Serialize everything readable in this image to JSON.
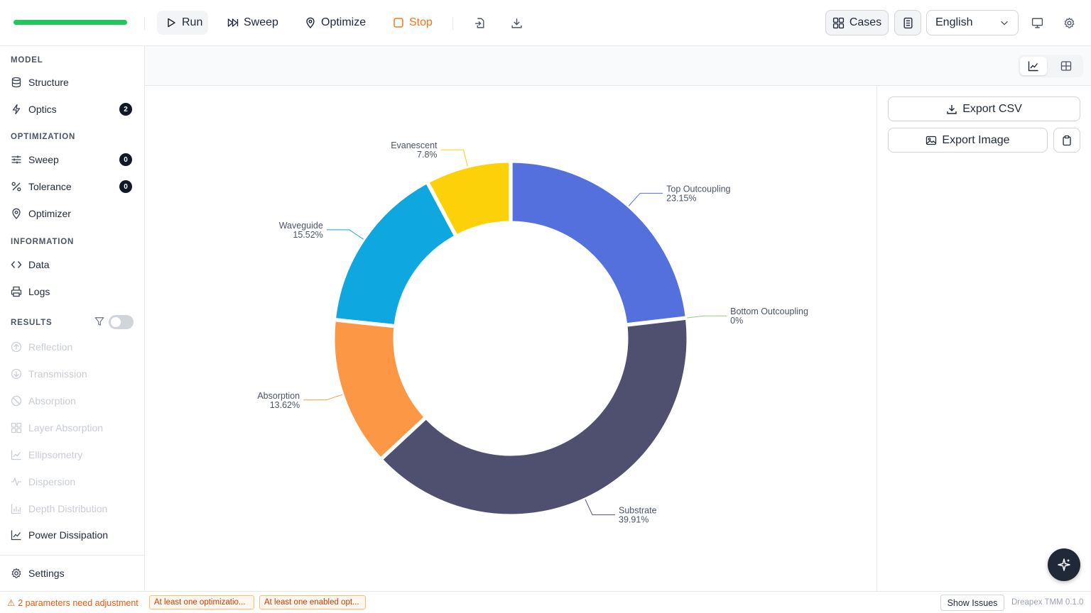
{
  "toolbar": {
    "run_label": "Run",
    "sweep_label": "Sweep",
    "optimize_label": "Optimize",
    "stop_label": "Stop",
    "cases_label": "Cases",
    "language": "English",
    "progress_fraction": 1.0,
    "colors": {
      "progress": "#22c55e",
      "stop": "#f97316"
    }
  },
  "sidebar": {
    "model_heading": "MODEL",
    "model_items": [
      {
        "label": "Structure",
        "icon": "database-icon"
      },
      {
        "label": "Optics",
        "icon": "bolt-icon",
        "badge": "2"
      }
    ],
    "optimization_heading": "OPTIMIZATION",
    "optimization_items": [
      {
        "label": "Sweep",
        "icon": "sliders-icon",
        "badge": "0"
      },
      {
        "label": "Tolerance",
        "icon": "percent-icon",
        "badge": "0"
      },
      {
        "label": "Optimizer",
        "icon": "pin-icon"
      }
    ],
    "information_heading": "INFORMATION",
    "information_items": [
      {
        "label": "Data",
        "icon": "code-icon"
      },
      {
        "label": "Logs",
        "icon": "printer-icon"
      }
    ],
    "results_heading": "RESULTS",
    "results_items": [
      {
        "label": "Reflection",
        "icon": "arrow-up-circle-icon",
        "disabled": true
      },
      {
        "label": "Transmission",
        "icon": "arrow-down-circle-icon",
        "disabled": true
      },
      {
        "label": "Absorption",
        "icon": "ban-icon",
        "disabled": true
      },
      {
        "label": "Layer Absorption",
        "icon": "grid-icon",
        "disabled": true
      },
      {
        "label": "Ellipsometry",
        "icon": "line-chart-icon",
        "disabled": true
      },
      {
        "label": "Dispersion",
        "icon": "pulse-icon",
        "disabled": true
      },
      {
        "label": "Depth Distribution",
        "icon": "bar-chart-icon",
        "disabled": true
      },
      {
        "label": "Power Dissipation",
        "icon": "line-chart-icon",
        "disabled": false
      }
    ],
    "settings_label": "Settings"
  },
  "panel": {
    "export_csv_label": "Export CSV",
    "export_image_label": "Export Image"
  },
  "chart_data": {
    "type": "pie",
    "donut": true,
    "categories": [
      "Top Outcoupling",
      "Bottom Outcoupling",
      "Substrate",
      "Absorption",
      "Waveguide",
      "Evanescent"
    ],
    "values": [
      23.15,
      0,
      39.91,
      13.62,
      15.52,
      7.8
    ],
    "value_labels": [
      "23.15%",
      "0%",
      "39.91%",
      "13.62%",
      "15.52%",
      "7.8%"
    ],
    "colors": [
      "#5470dc",
      "#91cc75",
      "#4f5070",
      "#fc9745",
      "#0fa7df",
      "#fcd10a"
    ],
    "title": "",
    "legend": "none"
  },
  "status": {
    "warning_text": "2 parameters need adjustment",
    "chips": [
      "At least one optimizatio...",
      "At least one enabled opt..."
    ],
    "show_issues_label": "Show Issues",
    "version": "Dreapex TMM 0.1.0"
  }
}
